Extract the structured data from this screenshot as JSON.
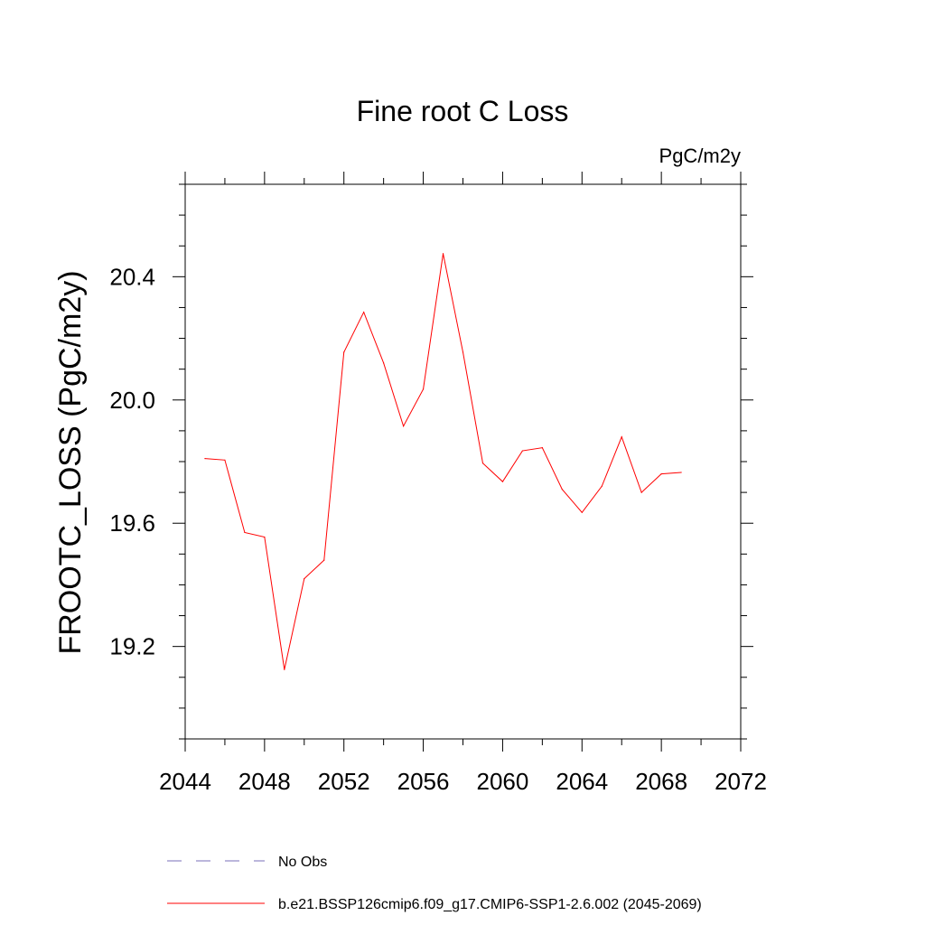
{
  "chart_data": {
    "type": "line",
    "title": "Fine root C Loss",
    "units_label": "PgC/m2y",
    "ylabel": "FROOTC_LOSS  (PgC/m2y)",
    "xlabel": "",
    "xlim": [
      2044,
      2072
    ],
    "ylim": [
      18.9,
      20.7
    ],
    "x_ticks": [
      2044,
      2048,
      2052,
      2056,
      2060,
      2064,
      2068,
      2072
    ],
    "x_tick_labels": [
      "2044",
      "2048",
      "2052",
      "2056",
      "2060",
      "2064",
      "2068",
      "2072"
    ],
    "x_minor_step": 2,
    "y_ticks": [
      19.2,
      19.6,
      20.0,
      20.4
    ],
    "y_tick_labels": [
      "19.2",
      "19.6",
      "20.0",
      "20.4"
    ],
    "y_minor_step": 0.1,
    "grid": false,
    "legend_position": "bottom",
    "series": [
      {
        "name": "b.e21.BSSP126cmip6.f09_g17.CMIP6-SSP1-2.6.002 (2045-2069)",
        "color": "#ff0000",
        "dash": "solid",
        "x": [
          2045,
          2046,
          2047,
          2048,
          2049,
          2050,
          2051,
          2052,
          2053,
          2054,
          2055,
          2056,
          2057,
          2058,
          2059,
          2060,
          2061,
          2062,
          2063,
          2064,
          2065,
          2066,
          2067,
          2068,
          2069
        ],
        "values": [
          19.81,
          19.805,
          19.57,
          19.555,
          19.125,
          19.42,
          19.48,
          20.155,
          20.285,
          20.12,
          19.915,
          20.035,
          20.475,
          20.155,
          19.795,
          19.735,
          19.835,
          19.845,
          19.71,
          19.635,
          19.72,
          19.88,
          19.7,
          19.76,
          19.765
        ]
      }
    ],
    "legend": [
      {
        "label": "No Obs",
        "color": "#7a6fb8",
        "dash": "dashed"
      },
      {
        "label": "b.e21.BSSP126cmip6.f09_g17.CMIP6-SSP1-2.6.002 (2045-2069)",
        "color": "#ff0000",
        "dash": "solid"
      }
    ]
  }
}
